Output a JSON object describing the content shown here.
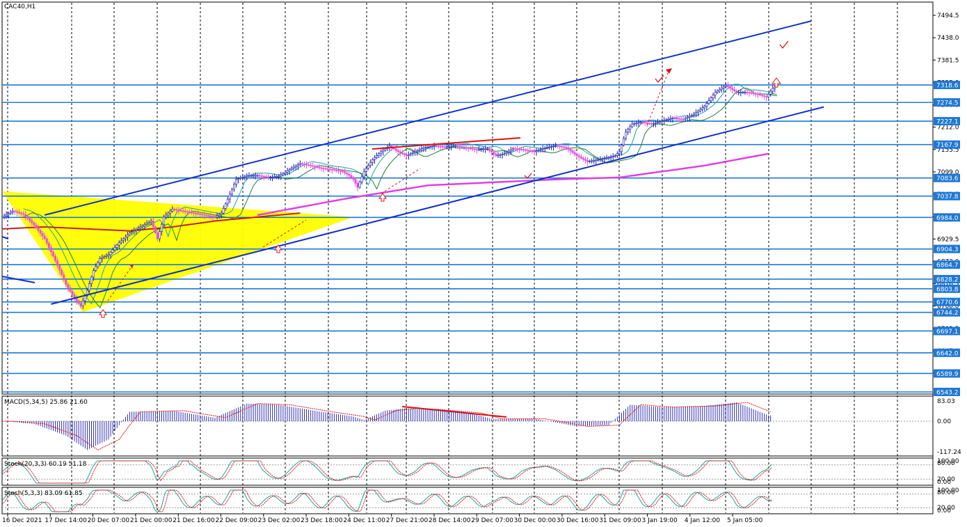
{
  "chart_data": {
    "type": "candlestick",
    "symbol_timeframe": "CAC40,H1",
    "colors": {
      "candle_up": "#1a1aaa",
      "candle_down": "#e24fe2",
      "level_line": "#1e78d8",
      "channel": "#1030c8",
      "ma_slow": "#c02020",
      "ma_long": "#e040e0",
      "ma_fast1": "#20a0a0",
      "ma_fast2": "#208030",
      "triangle_fill": "#ffff00",
      "label_bg": "#1e78d8",
      "annotation_red": "#e01010",
      "macd_hist": "#1a1aaa",
      "macd_signal": "#e01010",
      "stoch_main": "#20a0a0",
      "stoch_signal": "#e01010"
    },
    "price_axis": {
      "ylim": [
        6543.2,
        7494.5
      ],
      "tick_labels": [
        {
          "text": "7494.5",
          "value": 7494.5
        },
        {
          "text": "7438.0",
          "value": 7438.0
        },
        {
          "text": "7381.5",
          "value": 7381.5
        },
        {
          "text": "7325.0",
          "value": 7325.0
        },
        {
          "text": "7268.5",
          "value": 7268.5
        },
        {
          "text": "7212.0",
          "value": 7212.0
        },
        {
          "text": "7155.5",
          "value": 7155.5
        },
        {
          "text": "7099.0",
          "value": 7099.0
        },
        {
          "text": "7042.5",
          "value": 7042.5
        },
        {
          "text": "6986.0",
          "value": 6986.0
        },
        {
          "text": "6929.5",
          "value": 6929.5
        },
        {
          "text": "6873.0",
          "value": 6873.0
        },
        {
          "text": "6816.5",
          "value": 6816.5
        },
        {
          "text": "6760.0",
          "value": 6760.0
        },
        {
          "text": "6703.5",
          "value": 6703.5
        },
        {
          "text": "6647.0",
          "value": 6647.0
        },
        {
          "text": "6590.5",
          "value": 6590.5
        }
      ]
    },
    "levels": [
      {
        "label": "7318.6",
        "value": 7318.6
      },
      {
        "label": "7274.5",
        "value": 7274.5
      },
      {
        "label": "7227.1",
        "value": 7227.1
      },
      {
        "label": "7167.9",
        "value": 7167.9
      },
      {
        "label": "7083.6",
        "value": 7083.6
      },
      {
        "label": "7037.8",
        "value": 7037.8
      },
      {
        "label": "6984.0",
        "value": 6984.0
      },
      {
        "label": "6904.3",
        "value": 6904.3
      },
      {
        "label": "6864.7",
        "value": 6864.7
      },
      {
        "label": "6828.2",
        "value": 6828.2
      },
      {
        "label": "6803.8",
        "value": 6803.8
      },
      {
        "label": "6770.6",
        "value": 6770.6
      },
      {
        "label": "6744.2",
        "value": 6744.2
      },
      {
        "label": "6697.1",
        "value": 6697.1
      },
      {
        "label": "6642.0",
        "value": 6642.0
      },
      {
        "label": "6589.9",
        "value": 6589.9
      },
      {
        "label": "6543.2",
        "value": 6543.2
      }
    ],
    "time_labels": [
      "16 Dec 2021",
      "17 Dec 14:00",
      "20 Dec 07:00",
      "21 Dec 00:00",
      "21 Dec 16:00",
      "22 Dec 09:00",
      "23 Dec 02:00",
      "23 Dec 18:00",
      "24 Dec 11:00",
      "27 Dec 21:00",
      "28 Dec 14:00",
      "29 Dec 07:00",
      "30 Dec 00:00",
      "30 Dec 16:00",
      "31 Dec 09:00",
      "3 Jan 19:00",
      "4 Jan 12:00",
      "5 Jan 05:00"
    ],
    "price_path": [
      [
        0,
        6985
      ],
      [
        0.5,
        7000
      ],
      [
        1.0,
        6992
      ],
      [
        1.5,
        6965
      ],
      [
        2.0,
        6930
      ],
      [
        2.5,
        6875
      ],
      [
        3.0,
        6815
      ],
      [
        3.4,
        6780
      ],
      [
        3.7,
        6760
      ],
      [
        4.0,
        6800
      ],
      [
        4.3,
        6850
      ],
      [
        4.6,
        6880
      ],
      [
        5.0,
        6890
      ],
      [
        5.5,
        6920
      ],
      [
        6.0,
        6945
      ],
      [
        6.5,
        6960
      ],
      [
        7.0,
        6975
      ],
      [
        7.3,
        6930
      ],
      [
        7.6,
        6985
      ],
      [
        8.0,
        7005
      ],
      [
        8.5,
        7000
      ],
      [
        9.0,
        6995
      ],
      [
        9.5,
        6990
      ],
      [
        10.0,
        6985
      ],
      [
        10.3,
        6995
      ],
      [
        10.6,
        7030
      ],
      [
        11.0,
        7080
      ],
      [
        11.5,
        7090
      ],
      [
        12.0,
        7090
      ],
      [
        12.5,
        7085
      ],
      [
        13.0,
        7088
      ],
      [
        13.5,
        7105
      ],
      [
        14.0,
        7120
      ],
      [
        14.5,
        7115
      ],
      [
        15.0,
        7108
      ],
      [
        15.5,
        7105
      ],
      [
        16.0,
        7100
      ],
      [
        16.3,
        7090
      ],
      [
        16.5,
        7080
      ],
      [
        16.7,
        7060
      ],
      [
        17.0,
        7100
      ],
      [
        17.4,
        7130
      ],
      [
        17.8,
        7150
      ],
      [
        18.2,
        7165
      ],
      [
        18.6,
        7150
      ],
      [
        19.0,
        7140
      ],
      [
        19.4,
        7150
      ],
      [
        19.8,
        7160
      ],
      [
        20.3,
        7165
      ],
      [
        20.8,
        7162
      ],
      [
        21.3,
        7165
      ],
      [
        21.8,
        7160
      ],
      [
        22.3,
        7155
      ],
      [
        22.8,
        7158
      ],
      [
        23.2,
        7140
      ],
      [
        23.6,
        7145
      ],
      [
        24.0,
        7158
      ],
      [
        24.5,
        7155
      ],
      [
        25.0,
        7150
      ],
      [
        25.5,
        7160
      ],
      [
        26.0,
        7165
      ],
      [
        26.5,
        7160
      ],
      [
        27.0,
        7140
      ],
      [
        27.5,
        7125
      ],
      [
        28.0,
        7130
      ],
      [
        28.5,
        7135
      ],
      [
        28.8,
        7140
      ],
      [
        29.0,
        7150
      ],
      [
        29.3,
        7200
      ],
      [
        29.6,
        7220
      ],
      [
        30.0,
        7225
      ],
      [
        30.5,
        7220
      ],
      [
        31.0,
        7228
      ],
      [
        31.5,
        7235
      ],
      [
        32.0,
        7232
      ],
      [
        32.5,
        7245
      ],
      [
        33.0,
        7265
      ],
      [
        33.5,
        7300
      ],
      [
        34.0,
        7318
      ],
      [
        34.5,
        7300
      ],
      [
        35.0,
        7300
      ],
      [
        35.5,
        7295
      ],
      [
        35.9,
        7288
      ],
      [
        36.2,
        7310
      ],
      [
        36.4,
        7318
      ]
    ],
    "ma_slow_path": [
      [
        0,
        6955
      ],
      [
        2,
        6960
      ],
      [
        4,
        6955
      ],
      [
        6,
        6950
      ],
      [
        8,
        6960
      ],
      [
        10,
        6975
      ],
      [
        12,
        6985
      ],
      [
        14,
        6995
      ]
    ],
    "ma_long_path": [
      [
        12,
        6990
      ],
      [
        16,
        7030
      ],
      [
        20,
        7065
      ],
      [
        26,
        7080
      ],
      [
        29,
        7085
      ],
      [
        33,
        7115
      ],
      [
        36,
        7145
      ]
    ],
    "channel_upper": [
      [
        2,
        6990
      ],
      [
        38,
        7480
      ]
    ],
    "channel_lower": [
      [
        2.3,
        6765
      ],
      [
        38.6,
        7263
      ]
    ],
    "triangle": [
      [
        0,
        7050
      ],
      [
        3.8,
        6745
      ],
      [
        16.5,
        6985
      ]
    ],
    "macd": {
      "label": "MACD(5,34,5) 25.86 21.60",
      "ylim": [
        -117.24,
        83.03
      ],
      "tick_labels": [
        "83.03",
        "0.00",
        "-117.24"
      ],
      "hist_path": [
        [
          0,
          0
        ],
        [
          1.5,
          -10
        ],
        [
          3,
          -55
        ],
        [
          4,
          -110
        ],
        [
          5,
          -70
        ],
        [
          6,
          40
        ],
        [
          8,
          45
        ],
        [
          10,
          15
        ],
        [
          11.5,
          75
        ],
        [
          13,
          70
        ],
        [
          15,
          40
        ],
        [
          16.5,
          20
        ],
        [
          17,
          5
        ],
        [
          18,
          45
        ],
        [
          19,
          55
        ],
        [
          20,
          50
        ],
        [
          22,
          35
        ],
        [
          23,
          10
        ],
        [
          25,
          10
        ],
        [
          27,
          -20
        ],
        [
          28.5,
          -15
        ],
        [
          29.5,
          70
        ],
        [
          31,
          60
        ],
        [
          33,
          65
        ],
        [
          34.5,
          80
        ],
        [
          36,
          25
        ]
      ]
    },
    "stoch1": {
      "label": "Stoch(20,3,3) 60.19 51.18",
      "tick_labels": [
        "100.00",
        "80.00",
        "20.00",
        "0.00"
      ]
    },
    "stoch2": {
      "label": "Stoch(5,3,3) 83.09 61.85",
      "tick_labels": [
        "100.00",
        "80.00",
        "20.00",
        "0.00"
      ]
    }
  }
}
